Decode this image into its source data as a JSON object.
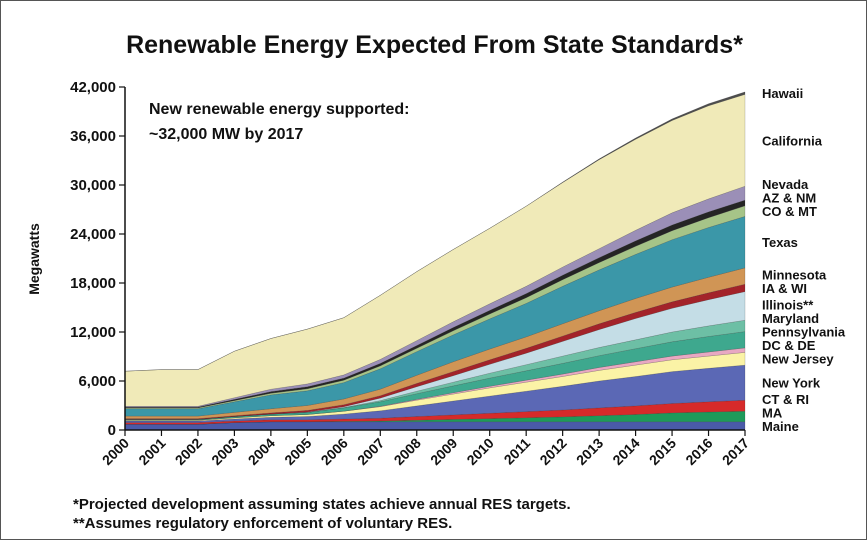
{
  "chart_data": {
    "type": "area",
    "title": "Renewable Energy Expected From State Standards*",
    "ylabel": "Megawatts",
    "xlabel": "",
    "ylim": [
      0,
      42000
    ],
    "yticks": [
      "42,000",
      "36,000",
      "30,000",
      "24,000",
      "18,000",
      "12,000",
      "6,000",
      "0"
    ],
    "ytick_values": [
      42000,
      36000,
      30000,
      24000,
      18000,
      12000,
      6000,
      0
    ],
    "x": [
      "2000",
      "2001",
      "2002",
      "2003",
      "2004",
      "2005",
      "2006",
      "2007",
      "2008",
      "2009",
      "2010",
      "2011",
      "2012",
      "2013",
      "2014",
      "2015",
      "2016",
      "2017"
    ],
    "stacked": true,
    "grid": false,
    "legend_placement": "right, labels aligned to layers",
    "annotation": {
      "line1": "New renewable energy supported:",
      "line2": "~32,000 MW by 2017"
    },
    "series": [
      {
        "name": "Maine",
        "color": "#4a5aa8",
        "values": [
          700,
          700,
          700,
          900,
          1000,
          1000,
          1000,
          1000,
          1000,
          1000,
          1000,
          1000,
          1000,
          1000,
          1000,
          1000,
          1000,
          1000
        ]
      },
      {
        "name": "MA",
        "color": "#1e9a5a",
        "values": [
          0,
          0,
          0,
          0,
          0,
          0,
          50,
          100,
          200,
          300,
          400,
          500,
          600,
          750,
          900,
          1100,
          1200,
          1300
        ]
      },
      {
        "name": "CT & RI",
        "color": "#d62a2a",
        "values": [
          200,
          200,
          200,
          200,
          250,
          250,
          300,
          350,
          450,
          550,
          650,
          750,
          850,
          950,
          1050,
          1150,
          1250,
          1350
        ]
      },
      {
        "name": "New York",
        "color": "#5b68b5",
        "values": [
          200,
          200,
          200,
          250,
          300,
          400,
          600,
          900,
          1300,
          1700,
          2100,
          2500,
          2900,
          3300,
          3600,
          3900,
          4100,
          4300
        ]
      },
      {
        "name": "New Jersey",
        "color": "#fbf3a6",
        "values": [
          100,
          100,
          100,
          150,
          200,
          250,
          350,
          500,
          700,
          850,
          1000,
          1100,
          1200,
          1300,
          1400,
          1450,
          1500,
          1550
        ]
      },
      {
        "name": "DC & DE",
        "color": "#e8a8c2",
        "values": [
          0,
          0,
          0,
          0,
          0,
          0,
          0,
          50,
          100,
          150,
          200,
          250,
          300,
          350,
          400,
          450,
          500,
          550
        ]
      },
      {
        "name": "Pennsylvania",
        "color": "#3ea88e",
        "values": [
          100,
          100,
          100,
          150,
          200,
          250,
          400,
          550,
          700,
          850,
          1000,
          1150,
          1300,
          1450,
          1600,
          1750,
          1900,
          2000
        ]
      },
      {
        "name": "Maryland",
        "color": "#6dbfa5",
        "values": [
          0,
          0,
          0,
          0,
          0,
          0,
          50,
          150,
          300,
          450,
          600,
          750,
          900,
          1000,
          1100,
          1200,
          1300,
          1400
        ]
      },
      {
        "name": "Illinois**",
        "color": "#c4dde6",
        "values": [
          0,
          0,
          0,
          0,
          0,
          50,
          100,
          300,
          550,
          800,
          1100,
          1400,
          1800,
          2200,
          2600,
          2900,
          3200,
          3500
        ]
      },
      {
        "name": "IA & WI",
        "color": "#a3232a",
        "values": [
          100,
          100,
          100,
          100,
          150,
          200,
          250,
          300,
          400,
          500,
          550,
          600,
          650,
          700,
          750,
          800,
          850,
          900
        ]
      },
      {
        "name": "Minnesota",
        "color": "#d09555",
        "values": [
          300,
          300,
          300,
          400,
          500,
          600,
          700,
          800,
          1000,
          1200,
          1300,
          1400,
          1500,
          1600,
          1700,
          1800,
          1900,
          2000
        ]
      },
      {
        "name": "Texas",
        "color": "#3b97a8",
        "values": [
          900,
          900,
          900,
          1300,
          1700,
          1800,
          2000,
          2500,
          2900,
          3300,
          3700,
          4100,
          4600,
          5000,
          5400,
          5800,
          6100,
          6300
        ]
      },
      {
        "name": "CO & MT",
        "color": "#a6c488",
        "values": [
          100,
          100,
          100,
          150,
          200,
          250,
          300,
          350,
          400,
          500,
          600,
          700,
          800,
          900,
          1000,
          1100,
          1200,
          1300
        ]
      },
      {
        "name": "AZ & NM",
        "color": "#252525",
        "values": [
          100,
          100,
          100,
          150,
          200,
          250,
          250,
          300,
          350,
          400,
          450,
          500,
          550,
          600,
          650,
          700,
          700,
          700
        ]
      },
      {
        "name": "Nevada",
        "color": "#9b8fb7",
        "values": [
          100,
          100,
          100,
          200,
          300,
          350,
          400,
          500,
          600,
          700,
          800,
          900,
          1000,
          1100,
          1300,
          1500,
          1600,
          1700
        ]
      },
      {
        "name": "California",
        "color": "#f0eab8",
        "values": [
          4300,
          4500,
          4500,
          5700,
          6200,
          6700,
          7000,
          7850,
          8450,
          8850,
          9250,
          9800,
          10350,
          10900,
          11150,
          11300,
          11400,
          11250
        ]
      },
      {
        "name": "Hawaii",
        "color": "#4d4d4d",
        "values": [
          0,
          0,
          0,
          0,
          0,
          0,
          0,
          0,
          0,
          0,
          0,
          0,
          50,
          100,
          150,
          200,
          250,
          300
        ]
      }
    ]
  },
  "footnotes": [
    "*Projected development assuming states achieve annual RES targets.",
    "**Assumes regulatory enforcement of voluntary RES."
  ]
}
